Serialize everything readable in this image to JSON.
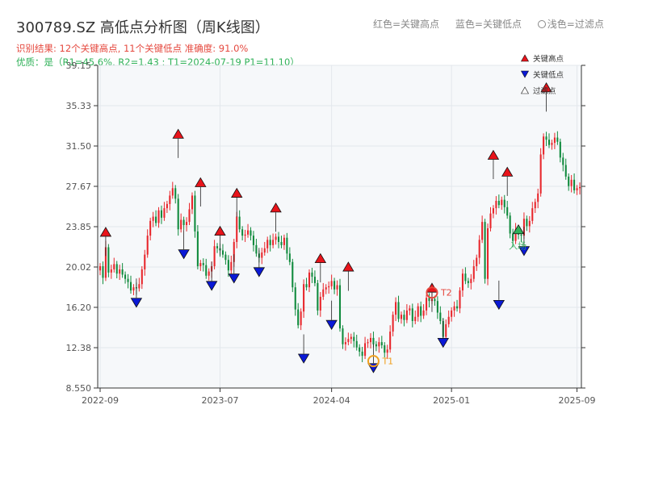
{
  "header": {
    "title": "300789.SZ 高低点分析图（周K线图）",
    "result_line": "识别结果: 12个关键高点, 11个关键低点  准确度: 91.0%",
    "quality_line": "优质：是（R1=45.6%, R2=1.43 ; T1=2024-07-19 P1=11.10）"
  },
  "top_legend": {
    "red_label": "红色=关键高点",
    "blue_label": "蓝色=关键低点",
    "gray_label": "浅色=过滤点"
  },
  "colors": {
    "up": "#e8262b",
    "down": "#0f8a3c",
    "high_marker": "#e8141b",
    "low_marker": "#0a19d6",
    "filtered_marker": "#2fb158",
    "t1": "#f0a020",
    "t2": "#e5483e",
    "plot_bg": "#f6f8fa"
  },
  "chart_data": {
    "type": "candlestick",
    "ylim": [
      8.55,
      39.15
    ],
    "y_ticks": [
      "8.550",
      "12.38",
      "16.20",
      "20.02",
      "23.85",
      "27.67",
      "31.50",
      "35.33",
      "39.15"
    ],
    "x_ticks": [
      {
        "label": "2022-09",
        "week": 0
      },
      {
        "label": "2023-07",
        "week": 43
      },
      {
        "label": "2024-04",
        "week": 83
      },
      {
        "label": "2025-01",
        "week": 126
      },
      {
        "label": "2025-09",
        "week": 171
      }
    ],
    "closes": [
      20.1,
      19.0,
      21.9,
      19.5,
      19.8,
      20.3,
      19.4,
      19.8,
      19.3,
      18.9,
      18.6,
      17.8,
      18.1,
      18.0,
      18.4,
      19.8,
      21.2,
      23.0,
      24.4,
      24.8,
      24.2,
      25.4,
      24.7,
      25.6,
      26.0,
      26.8,
      27.5,
      26.5,
      23.6,
      24.5,
      24.0,
      24.3,
      25.5,
      26.8,
      23.4,
      20.1,
      20.4,
      20.2,
      19.2,
      19.6,
      20.1,
      22.0,
      21.8,
      21.6,
      21.2,
      20.7,
      19.7,
      20.5,
      22.4,
      24.8,
      23.6,
      23.0,
      23.1,
      23.5,
      23.0,
      22.1,
      21.3,
      20.9,
      21.4,
      21.8,
      22.6,
      22.1,
      22.6,
      22.9,
      22.4,
      22.1,
      22.8,
      21.3,
      20.5,
      18.1,
      16.0,
      14.5,
      15.8,
      18.4,
      18.1,
      19.5,
      19.1,
      18.5,
      15.9,
      17.2,
      17.9,
      18.1,
      18.2,
      18.7,
      17.9,
      18.3,
      14.2,
      12.7,
      12.9,
      13.2,
      13.4,
      13.0,
      12.4,
      12.0,
      11.6,
      12.8,
      12.9,
      13.3,
      12.7,
      12.5,
      12.9,
      12.6,
      11.9,
      12.2,
      13.9,
      15.5,
      16.7,
      15.1,
      15.5,
      15.0,
      15.9,
      16.1,
      14.9,
      15.3,
      16.3,
      15.4,
      15.9,
      17.1,
      16.8,
      17.0,
      16.8,
      15.7,
      14.9,
      13.4,
      14.6,
      15.3,
      15.9,
      16.3,
      16.1,
      17.8,
      19.4,
      18.7,
      18.5,
      18.9,
      20.1,
      20.9,
      22.6,
      24.3,
      18.9,
      23.7,
      25.1,
      25.6,
      26.3,
      25.9,
      26.4,
      25.7,
      24.9,
      23.2,
      22.5,
      23.6,
      23.1,
      23.0,
      24.6,
      23.9,
      24.4,
      25.6,
      26.2,
      27.0,
      30.7,
      32.4,
      32.1,
      31.6,
      31.8,
      32.3,
      31.9,
      30.4,
      29.7,
      28.6,
      27.7,
      28.3,
      27.3,
      27.5,
      27.6
    ],
    "key_highs": [
      {
        "week": 2,
        "value": 22.9
      },
      {
        "week": 28,
        "value": 32.2
      },
      {
        "week": 36,
        "value": 27.6
      },
      {
        "week": 43,
        "value": 23.0
      },
      {
        "week": 49,
        "value": 26.6
      },
      {
        "week": 63,
        "value": 25.2
      },
      {
        "week": 79,
        "value": 20.4
      },
      {
        "week": 89,
        "value": 19.6
      },
      {
        "week": 119,
        "value": 17.6
      },
      {
        "week": 141,
        "value": 30.2
      },
      {
        "week": 146,
        "value": 28.6
      },
      {
        "week": 160,
        "value": 36.6
      }
    ],
    "key_lows": [
      {
        "week": 13,
        "value": 17.1
      },
      {
        "week": 30,
        "value": 21.7
      },
      {
        "week": 40,
        "value": 18.7
      },
      {
        "week": 48,
        "value": 19.4
      },
      {
        "week": 57,
        "value": 20.0
      },
      {
        "week": 73,
        "value": 11.8
      },
      {
        "week": 83,
        "value": 15.0
      },
      {
        "week": 98,
        "value": 10.9
      },
      {
        "week": 123,
        "value": 13.3
      },
      {
        "week": 143,
        "value": 16.9
      },
      {
        "week": 152,
        "value": 22.0
      }
    ],
    "filtered_points": [
      {
        "week": 150,
        "value": 23.6
      }
    ],
    "t1": {
      "week": 98,
      "value": 11.1,
      "label": "T1"
    },
    "t2": {
      "week": 119,
      "value": 17.6,
      "label": "T2"
    }
  },
  "plot_legend": {
    "high_label": "关键高点",
    "low_label": "关键低点",
    "filtered_label": "过滤点"
  },
  "annotations": {
    "filtered_label": "入场"
  }
}
